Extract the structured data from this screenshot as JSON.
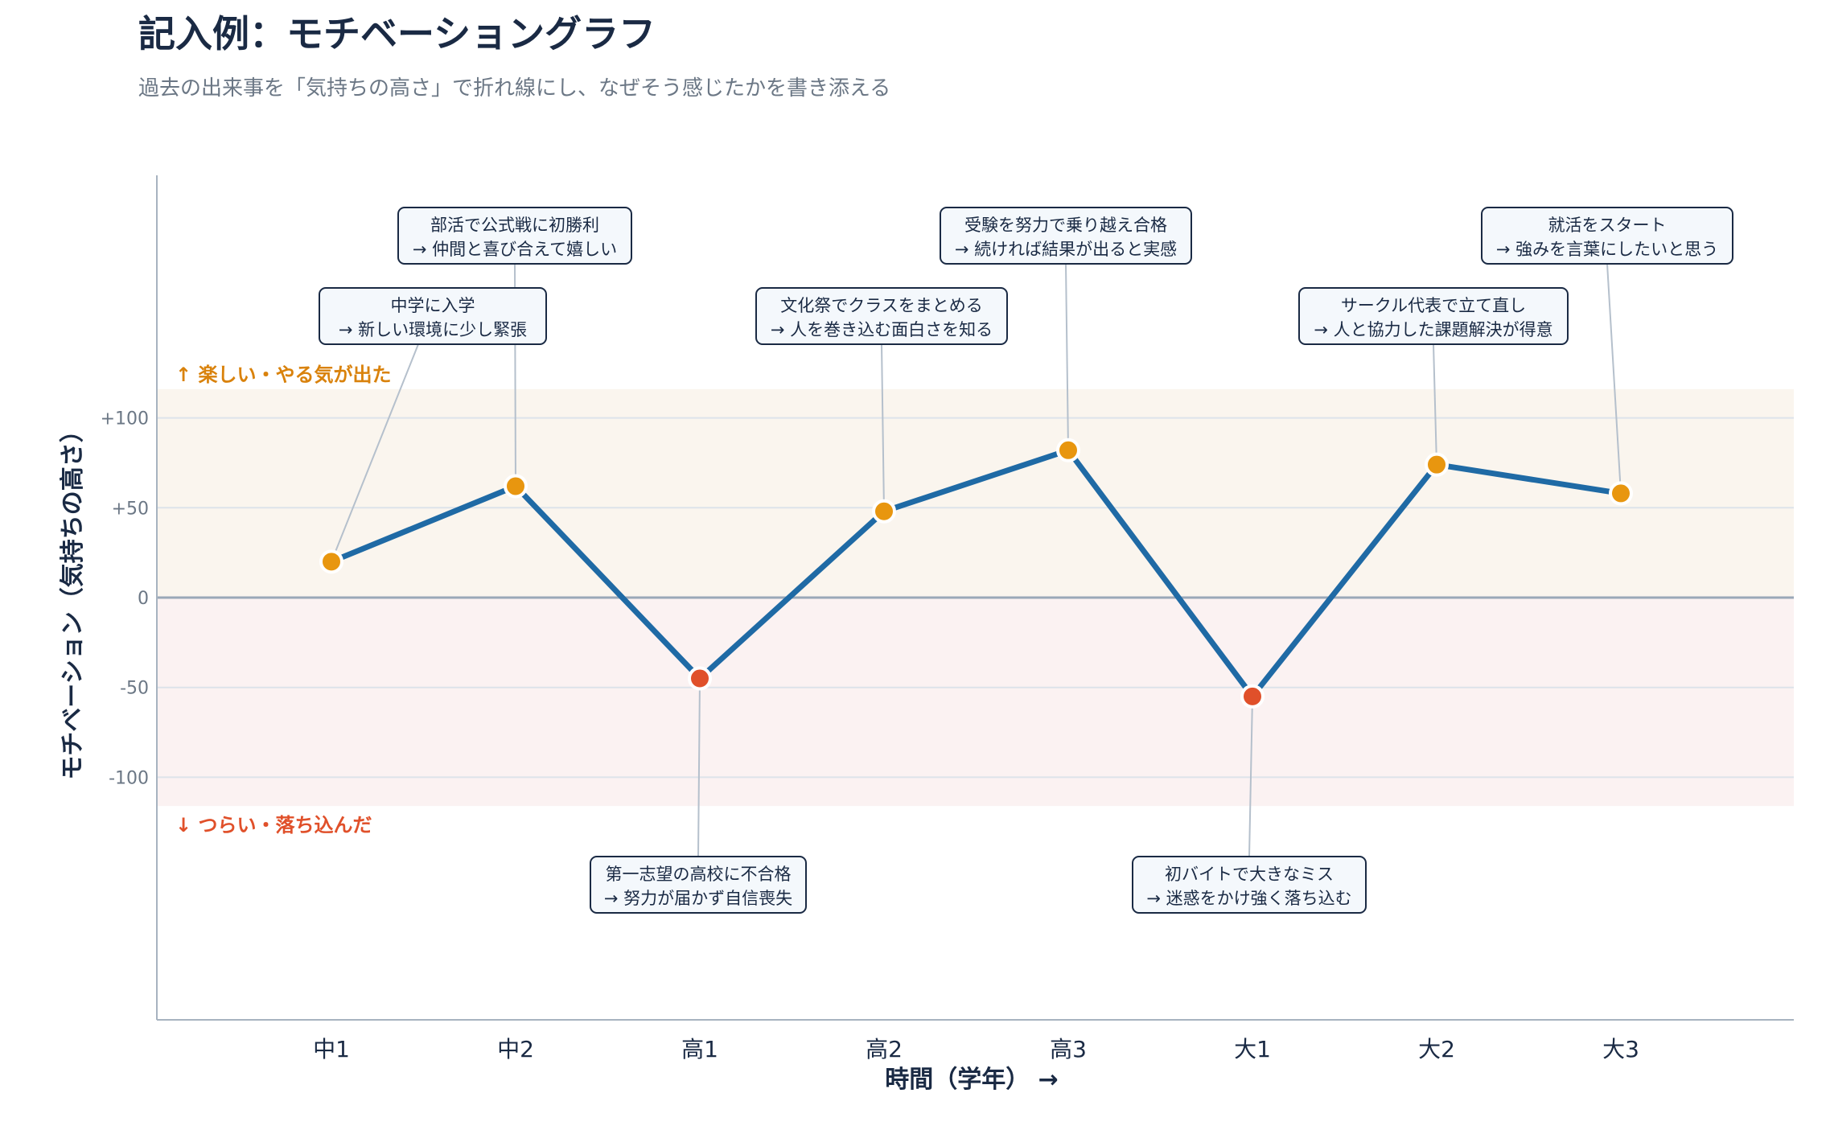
{
  "chart_data": {
    "type": "line",
    "title": "記入例：モチベーショングラフ",
    "subtitle": "過去の出来事を「気持ちの高さ」で折れ線にし、なぜそう感じたかを書き添える",
    "xlabel": "時間（学年）  →",
    "ylabel": "モチベーション（気持ちの高さ）",
    "categories": [
      "中1",
      "中2",
      "高1",
      "高2",
      "高3",
      "大1",
      "大2",
      "大3"
    ],
    "values": [
      20,
      62,
      -45,
      48,
      82,
      -55,
      74,
      58
    ],
    "ylim": [
      -235,
      235
    ],
    "yticks": [
      {
        "value": 100,
        "label": "+100"
      },
      {
        "value": 50,
        "label": "+50"
      },
      {
        "value": 0,
        "label": "0"
      },
      {
        "value": -50,
        "label": "-50"
      },
      {
        "value": -100,
        "label": "-100"
      }
    ],
    "band_labels": {
      "positive": "↑ 楽しい・やる気が出た",
      "negative": "↓ つらい・落ち込んだ"
    },
    "annotations": [
      {
        "index": 0,
        "line1": "中学に入学",
        "line2": "→ 新しい環境に少し緊張"
      },
      {
        "index": 1,
        "line1": "部活で公式戦に初勝利",
        "line2": "→ 仲間と喜び合えて嬉しい"
      },
      {
        "index": 2,
        "line1": "第一志望の高校に不合格",
        "line2": "→ 努力が届かず自信喪失"
      },
      {
        "index": 3,
        "line1": "文化祭でクラスをまとめる",
        "line2": "→ 人を巻き込む面白さを知る"
      },
      {
        "index": 4,
        "line1": "受験を努力で乗り越え合格",
        "line2": "→ 続ければ結果が出ると実感"
      },
      {
        "index": 5,
        "line1": "初バイトで大きなミス",
        "line2": "→ 迷惑をかけ強く落ち込む"
      },
      {
        "index": 6,
        "line1": "サークル代表で立て直し",
        "line2": "→ 人と協力した課題解決が得意"
      },
      {
        "index": 7,
        "line1": "就活をスタート",
        "line2": "→ 強みを言葉にしたいと思う"
      }
    ],
    "colors": {
      "line": "#1f6aa5",
      "positive_point": "#e8960f",
      "negative_point": "#e0502a",
      "positive_band": "#faf5ee",
      "negative_band": "#fbf2f2",
      "positive_text": "#d9820c",
      "negative_text": "#e0502a",
      "zero_line": "#9aa8b8",
      "grid": "#dde3ea",
      "leader": "#b5c0cc",
      "box_fill": "#f4f8fc",
      "box_stroke": "#1a2a44"
    }
  }
}
